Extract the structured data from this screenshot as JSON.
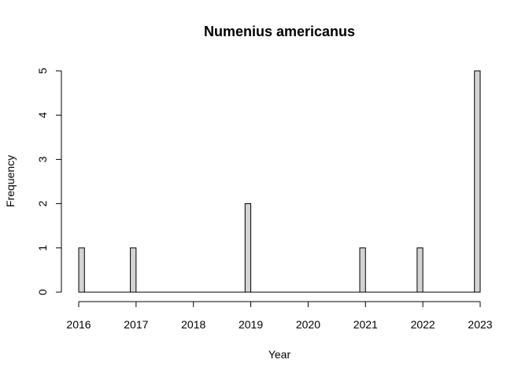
{
  "chart_data": {
    "type": "bar",
    "title": "Numenius americanus",
    "xlabel": "Year",
    "ylabel": "Frequency",
    "x_ticks": [
      "2016",
      "2017",
      "2018",
      "2019",
      "2020",
      "2021",
      "2022",
      "2023"
    ],
    "y_ticks": [
      "0",
      "1",
      "2",
      "3",
      "4",
      "5"
    ],
    "xlim": [
      2016,
      2023
    ],
    "ylim": [
      0,
      5
    ],
    "bin_width_years": 0.1,
    "bins": [
      {
        "x_start": 2016.0,
        "value": 1
      },
      {
        "x_start": 2016.9,
        "value": 1
      },
      {
        "x_start": 2018.9,
        "value": 2
      },
      {
        "x_start": 2020.9,
        "value": 1
      },
      {
        "x_start": 2021.9,
        "value": 1
      },
      {
        "x_start": 2022.9,
        "value": 5
      }
    ],
    "grid": false,
    "colors": {
      "bar_fill": "#d3d3d3",
      "bar_stroke": "#000000"
    }
  }
}
